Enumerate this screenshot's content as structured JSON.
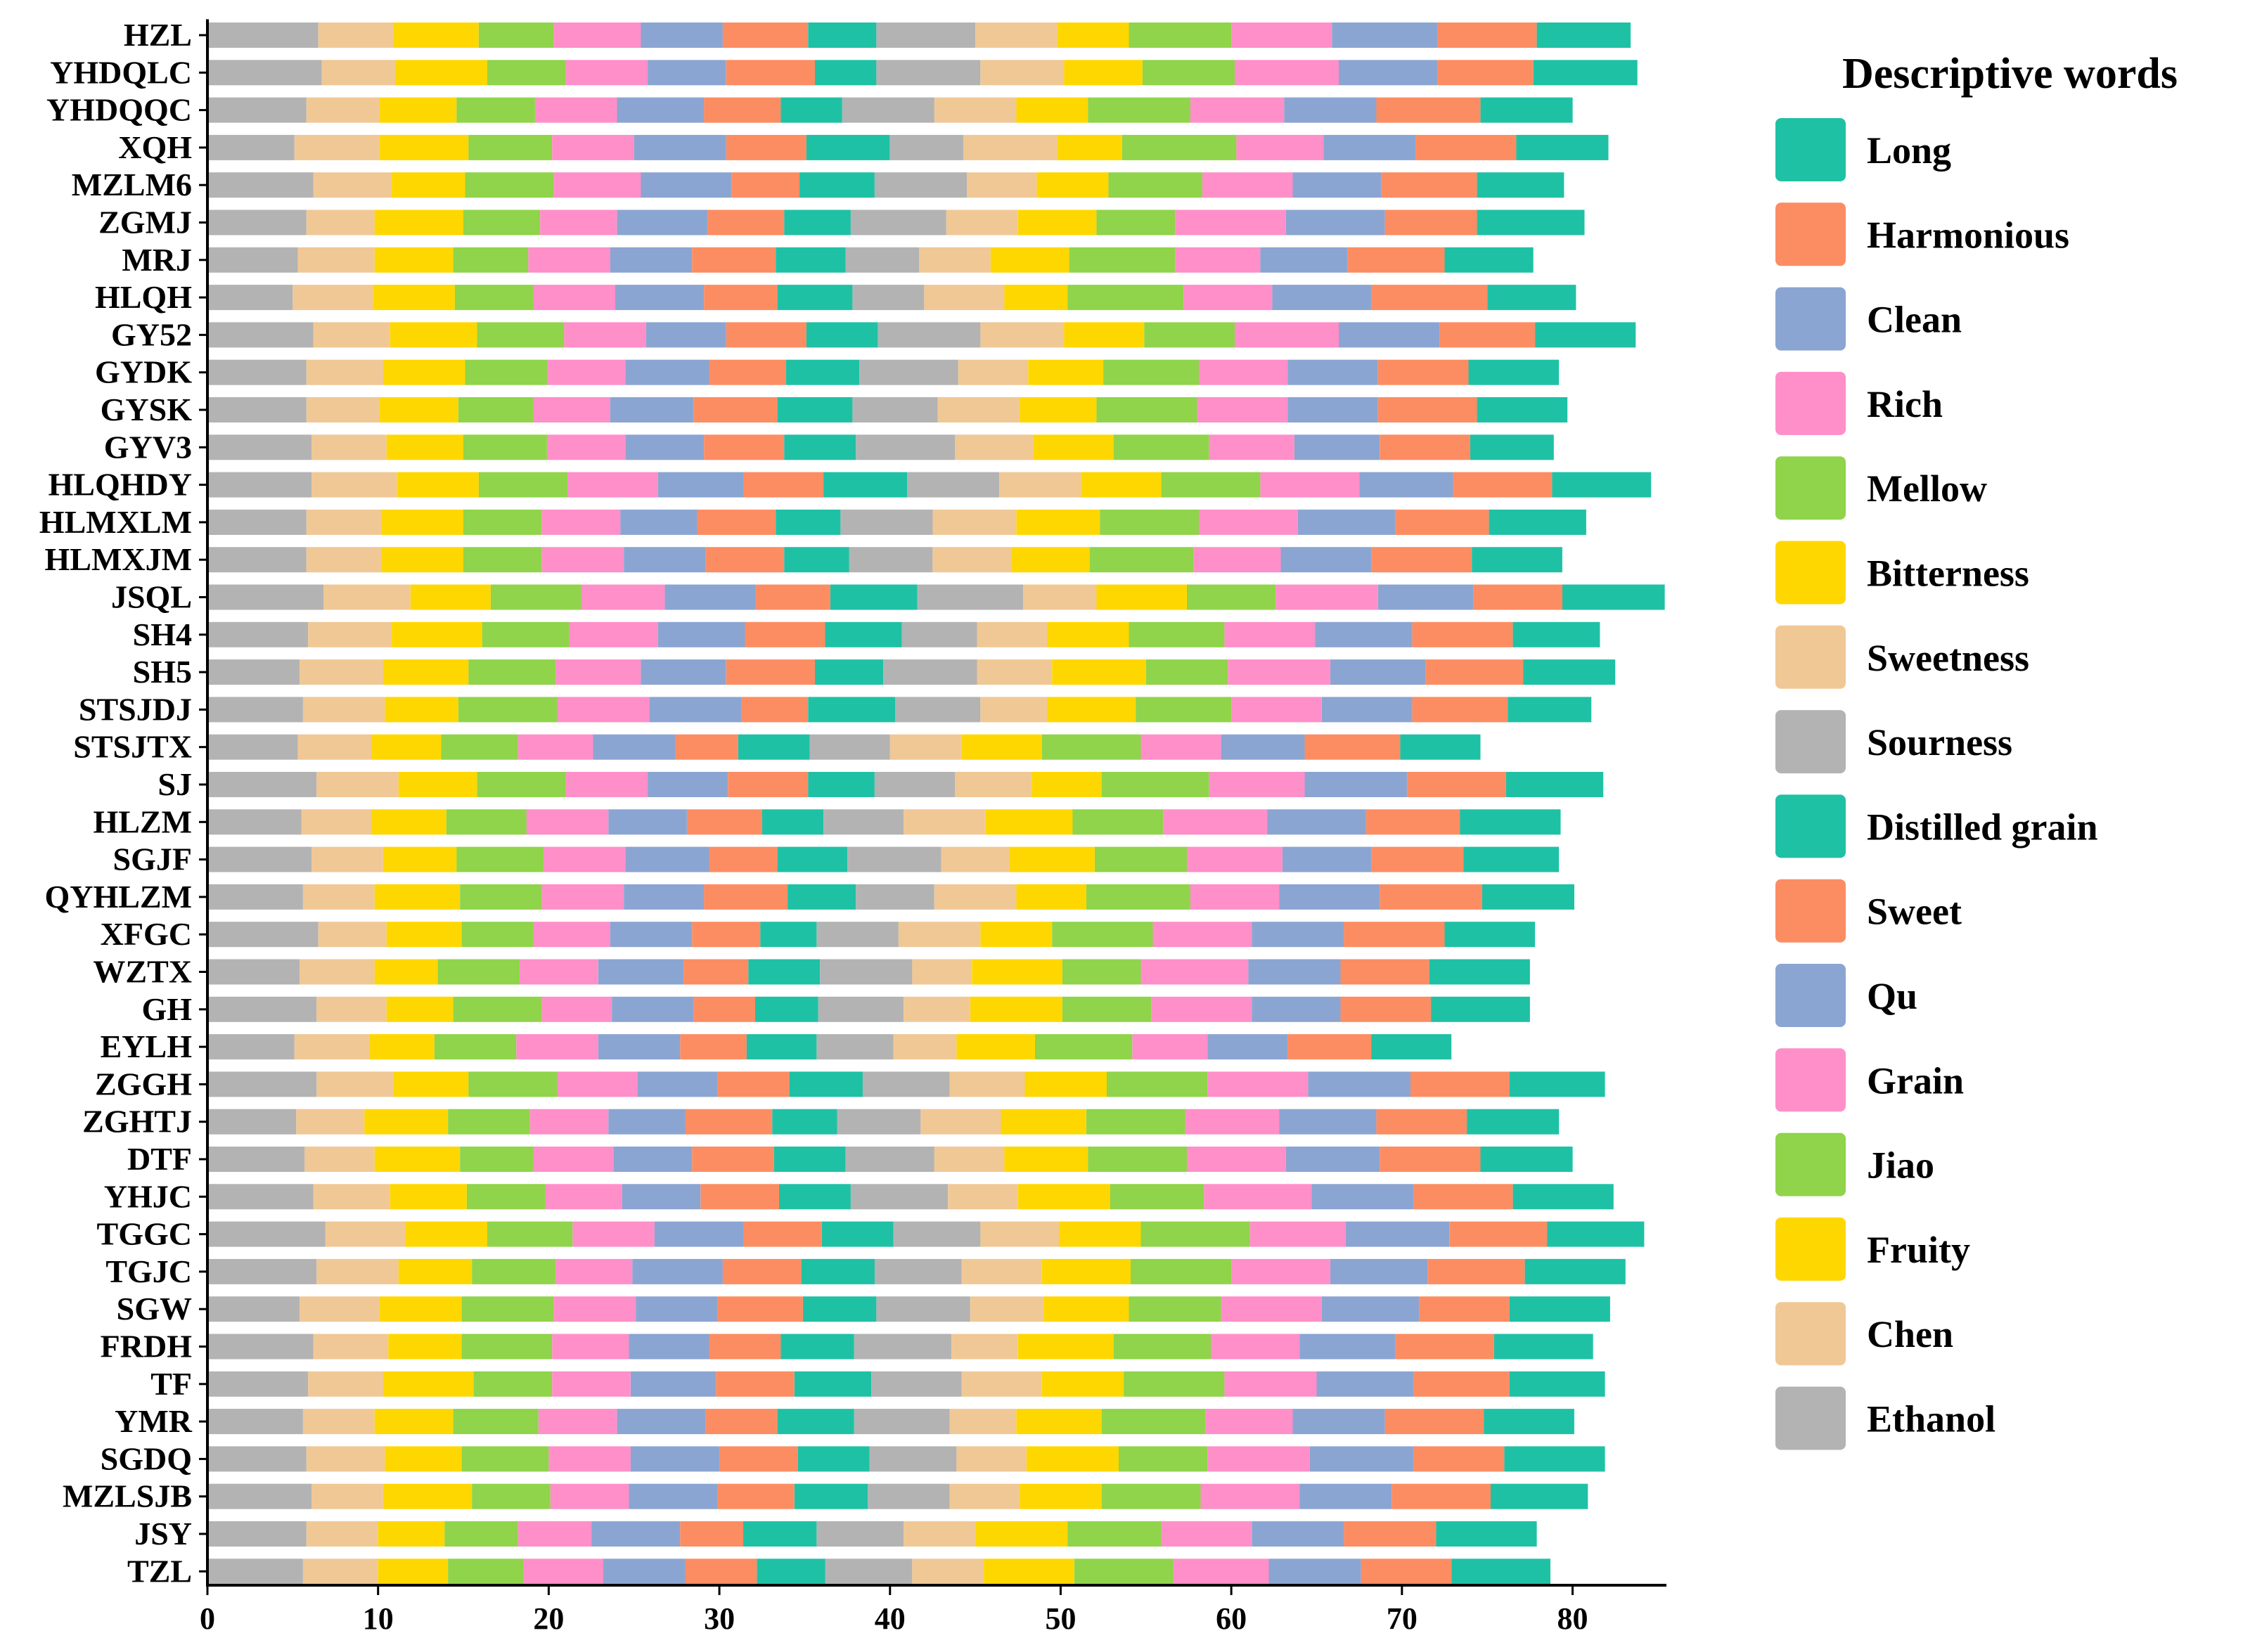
{
  "chart_data": {
    "type": "bar",
    "orientation": "horizontal",
    "stacked": true,
    "xlim": [
      0,
      85.5
    ],
    "xticks": [
      0,
      10,
      20,
      30,
      40,
      50,
      60,
      70,
      80
    ],
    "xlabel": "",
    "ylabel": "",
    "legend_title": "Descriptive words",
    "legend_position": "right",
    "categories": [
      "HZL",
      "YHDQLC",
      "YHDQQC",
      "XQH",
      "MZLM6",
      "ZGMJ",
      "MRJ",
      "HLQH",
      "GY52",
      "GYDK",
      "GYSK",
      "GYV3",
      "HLQHDY",
      "HLMXLM",
      "HLMXJM",
      "JSQL",
      "SH4",
      "SH5",
      "STSJDJ",
      "STSJTX",
      "SJ",
      "HLZM",
      "SGJF",
      "QYHLZM",
      "XFGC",
      "WZTX",
      "GH",
      "EYLH",
      "ZGGH",
      "ZGHTJ",
      "DTF",
      "YHJC",
      "TGGC",
      "TGJC",
      "SGW",
      "FRDH",
      "TF",
      "YMR",
      "SGDQ",
      "MZLSJB",
      "JSY",
      "TZL"
    ],
    "series": [
      {
        "name": "Ethanol",
        "color": "#B3B3B3",
        "values": [
          6.5,
          6.7,
          5.8,
          5.1,
          6.2,
          5.8,
          5.3,
          5.0,
          6.2,
          5.8,
          5.8,
          6.1,
          6.1,
          5.8,
          5.8,
          6.8,
          5.9,
          5.4,
          5.6,
          5.3,
          6.4,
          5.5,
          6.1,
          5.6,
          6.5,
          5.4,
          6.4,
          5.1,
          6.4,
          5.2,
          5.7,
          6.2,
          6.9,
          6.4,
          5.4,
          6.2,
          5.9,
          5.6,
          5.8,
          6.1,
          5.8,
          5.6
        ]
      },
      {
        "name": "Chen",
        "color": "#F0C896",
        "values": [
          4.4,
          4.3,
          4.3,
          5.0,
          4.6,
          4.0,
          4.5,
          4.7,
          4.5,
          4.5,
          4.3,
          4.4,
          5.0,
          4.4,
          4.4,
          5.1,
          4.9,
          4.9,
          4.8,
          4.3,
          4.8,
          4.1,
          4.2,
          4.2,
          4.0,
          4.4,
          4.1,
          4.4,
          4.5,
          4.0,
          4.1,
          4.5,
          4.7,
          4.8,
          4.7,
          4.4,
          4.4,
          4.2,
          4.6,
          4.2,
          4.2,
          4.4
        ]
      },
      {
        "name": "Fruity",
        "color": "#FFD700",
        "values": [
          5.0,
          5.4,
          4.5,
          5.2,
          4.3,
          5.2,
          4.6,
          4.8,
          5.1,
          4.8,
          4.6,
          4.5,
          4.8,
          4.8,
          4.8,
          4.7,
          5.3,
          5.0,
          4.3,
          4.1,
          4.6,
          4.4,
          4.3,
          5.0,
          4.4,
          3.7,
          3.9,
          3.8,
          4.4,
          4.9,
          5.0,
          4.5,
          4.8,
          4.3,
          4.8,
          4.3,
          5.3,
          4.6,
          4.5,
          5.2,
          3.9,
          4.1
        ]
      },
      {
        "name": "Jiao",
        "color": "#8FD44A",
        "values": [
          4.4,
          4.6,
          4.6,
          4.9,
          5.2,
          4.5,
          4.4,
          4.6,
          5.1,
          4.8,
          4.4,
          4.9,
          5.2,
          4.6,
          4.6,
          5.3,
          5.1,
          5.1,
          5.8,
          4.5,
          5.2,
          4.7,
          5.1,
          4.8,
          4.2,
          4.8,
          5.2,
          4.8,
          5.2,
          4.8,
          4.3,
          4.6,
          5.0,
          4.9,
          5.4,
          5.3,
          4.6,
          5.0,
          5.1,
          4.6,
          4.3,
          4.4
        ]
      },
      {
        "name": "Grain",
        "color": "#FF8FC8",
        "values": [
          5.1,
          4.8,
          4.8,
          4.8,
          5.1,
          4.5,
          4.8,
          4.8,
          4.8,
          4.6,
          4.5,
          4.6,
          5.3,
          4.6,
          4.8,
          4.9,
          5.2,
          5.0,
          5.4,
          4.4,
          4.8,
          4.8,
          4.8,
          4.8,
          4.5,
          4.6,
          4.1,
          4.8,
          4.7,
          4.6,
          4.7,
          4.5,
          4.8,
          4.5,
          4.8,
          4.5,
          4.6,
          4.6,
          4.8,
          4.6,
          4.3,
          4.7
        ]
      },
      {
        "name": "Qu",
        "color": "#8BA5D2",
        "values": [
          4.8,
          4.6,
          5.1,
          5.4,
          5.3,
          5.3,
          4.8,
          5.2,
          4.7,
          4.9,
          4.9,
          4.6,
          5.0,
          4.5,
          4.8,
          5.3,
          5.1,
          5.0,
          5.4,
          4.8,
          4.7,
          4.6,
          4.9,
          4.7,
          4.8,
          5.0,
          4.8,
          4.8,
          4.7,
          4.5,
          4.6,
          4.6,
          5.2,
          5.3,
          4.8,
          4.7,
          5.0,
          5.2,
          5.2,
          5.2,
          5.2,
          4.8
        ]
      },
      {
        "name": "Sweet",
        "color": "#FC8D62",
        "values": [
          5.0,
          5.2,
          4.5,
          4.7,
          4.0,
          4.5,
          4.9,
          4.3,
          4.7,
          4.5,
          4.9,
          4.7,
          4.7,
          4.6,
          4.6,
          4.4,
          4.7,
          5.2,
          3.9,
          3.7,
          4.7,
          4.4,
          4.0,
          4.9,
          4.0,
          3.8,
          3.6,
          3.9,
          4.2,
          5.1,
          4.8,
          4.6,
          4.6,
          4.6,
          5.0,
          4.2,
          4.6,
          4.2,
          4.6,
          4.5,
          3.7,
          4.2
        ]
      },
      {
        "name": "Distilled grain",
        "color": "#1FC1A5",
        "values": [
          4.0,
          3.6,
          3.6,
          4.9,
          4.4,
          3.9,
          4.1,
          4.4,
          4.2,
          4.3,
          4.4,
          4.2,
          4.9,
          3.8,
          3.8,
          5.1,
          4.5,
          4.0,
          5.1,
          4.2,
          3.9,
          3.6,
          4.1,
          4.0,
          3.3,
          4.2,
          3.7,
          4.1,
          4.3,
          3.8,
          4.2,
          4.2,
          4.2,
          4.3,
          4.3,
          4.3,
          4.5,
          4.5,
          4.2,
          4.3,
          4.3,
          4.0
        ]
      },
      {
        "name": "Sourness",
        "color": "#B3B3B3",
        "values": [
          5.8,
          6.1,
          5.4,
          4.3,
          5.4,
          5.6,
          4.3,
          4.2,
          6.0,
          5.8,
          5.0,
          5.8,
          5.4,
          5.4,
          4.9,
          6.2,
          4.4,
          5.5,
          5.0,
          4.7,
          4.7,
          4.7,
          5.5,
          4.6,
          4.8,
          5.4,
          5.0,
          4.5,
          5.1,
          4.9,
          5.2,
          5.7,
          5.1,
          5.1,
          5.5,
          5.7,
          5.3,
          5.6,
          5.1,
          4.8,
          5.1,
          5.1
        ]
      },
      {
        "name": "Sweetness",
        "color": "#F0C896",
        "values": [
          4.8,
          4.9,
          4.8,
          5.5,
          4.1,
          4.2,
          4.2,
          4.7,
          4.9,
          4.1,
          4.8,
          4.6,
          4.8,
          4.9,
          4.6,
          4.3,
          4.1,
          4.4,
          3.9,
          4.2,
          4.5,
          4.8,
          4.0,
          4.8,
          4.8,
          3.5,
          3.9,
          3.7,
          4.4,
          4.7,
          4.1,
          4.1,
          4.6,
          4.7,
          4.3,
          3.9,
          4.7,
          3.9,
          4.1,
          4.1,
          4.2,
          4.2
        ]
      },
      {
        "name": "Bitterness",
        "color": "#FFD700",
        "values": [
          4.2,
          4.6,
          4.2,
          3.8,
          4.2,
          4.6,
          4.6,
          3.7,
          4.7,
          4.4,
          4.5,
          4.7,
          4.7,
          4.9,
          4.6,
          5.3,
          4.8,
          5.5,
          5.2,
          4.7,
          4.1,
          5.1,
          5.0,
          4.1,
          4.2,
          5.3,
          5.4,
          4.6,
          4.8,
          5.0,
          4.9,
          5.4,
          4.8,
          5.2,
          5.0,
          5.6,
          4.8,
          5.0,
          5.4,
          4.8,
          5.4,
          5.3
        ]
      },
      {
        "name": "Mellow",
        "color": "#8FD44A",
        "values": [
          6.0,
          5.4,
          6.0,
          6.7,
          5.5,
          4.6,
          6.2,
          6.8,
          5.3,
          5.6,
          5.9,
          5.6,
          5.8,
          5.8,
          6.1,
          5.2,
          5.6,
          4.8,
          5.6,
          5.8,
          6.3,
          5.3,
          5.4,
          6.1,
          5.9,
          4.6,
          5.2,
          5.7,
          5.9,
          5.8,
          5.8,
          5.5,
          6.4,
          5.9,
          5.4,
          5.7,
          5.9,
          6.1,
          5.2,
          5.8,
          5.5,
          5.8
        ]
      },
      {
        "name": "Rich",
        "color": "#FF8FC8",
        "values": [
          5.9,
          6.1,
          5.5,
          5.1,
          5.3,
          6.5,
          5.0,
          5.2,
          6.1,
          5.2,
          5.3,
          5.0,
          5.8,
          5.8,
          5.1,
          6.0,
          5.3,
          6.0,
          5.3,
          4.7,
          5.6,
          6.1,
          5.6,
          5.2,
          5.8,
          6.3,
          5.9,
          4.4,
          5.9,
          5.5,
          5.8,
          6.3,
          5.6,
          5.8,
          5.9,
          5.2,
          5.4,
          5.1,
          6.0,
          5.8,
          5.3,
          5.6
        ]
      },
      {
        "name": "Clean",
        "color": "#8BA5D2",
        "values": [
          6.2,
          5.8,
          5.4,
          5.4,
          5.2,
          5.8,
          5.1,
          5.8,
          5.9,
          5.3,
          5.3,
          5.0,
          5.5,
          5.7,
          5.3,
          5.6,
          5.7,
          5.6,
          5.3,
          4.9,
          6.0,
          5.8,
          5.2,
          5.9,
          5.4,
          5.4,
          5.2,
          4.7,
          6.0,
          5.7,
          5.5,
          6.0,
          6.1,
          5.7,
          5.7,
          5.6,
          5.7,
          5.4,
          6.1,
          5.4,
          5.4,
          5.4
        ]
      },
      {
        "name": "Harmonious",
        "color": "#FC8D62",
        "values": [
          5.8,
          5.6,
          6.1,
          5.9,
          5.6,
          5.4,
          5.7,
          6.8,
          5.6,
          5.3,
          5.8,
          5.3,
          5.8,
          5.5,
          5.9,
          5.2,
          5.9,
          5.7,
          5.6,
          5.6,
          5.8,
          5.5,
          5.4,
          6.0,
          5.9,
          5.2,
          5.3,
          4.9,
          5.8,
          5.3,
          5.9,
          5.8,
          5.7,
          5.7,
          5.3,
          5.8,
          5.6,
          5.8,
          5.3,
          5.8,
          5.4,
          5.3
        ]
      },
      {
        "name": "Long",
        "color": "#1FC1A5",
        "values": [
          5.5,
          6.1,
          5.4,
          5.4,
          5.1,
          6.3,
          5.2,
          5.2,
          5.9,
          5.3,
          5.3,
          4.9,
          5.8,
          5.7,
          5.3,
          6.0,
          5.1,
          5.4,
          4.9,
          4.7,
          5.7,
          5.9,
          5.6,
          5.4,
          5.3,
          5.9,
          5.8,
          4.7,
          5.6,
          5.4,
          5.4,
          5.9,
          5.7,
          5.9,
          5.9,
          5.8,
          5.6,
          5.3,
          5.9,
          5.7,
          5.9,
          5.8
        ]
      }
    ]
  }
}
